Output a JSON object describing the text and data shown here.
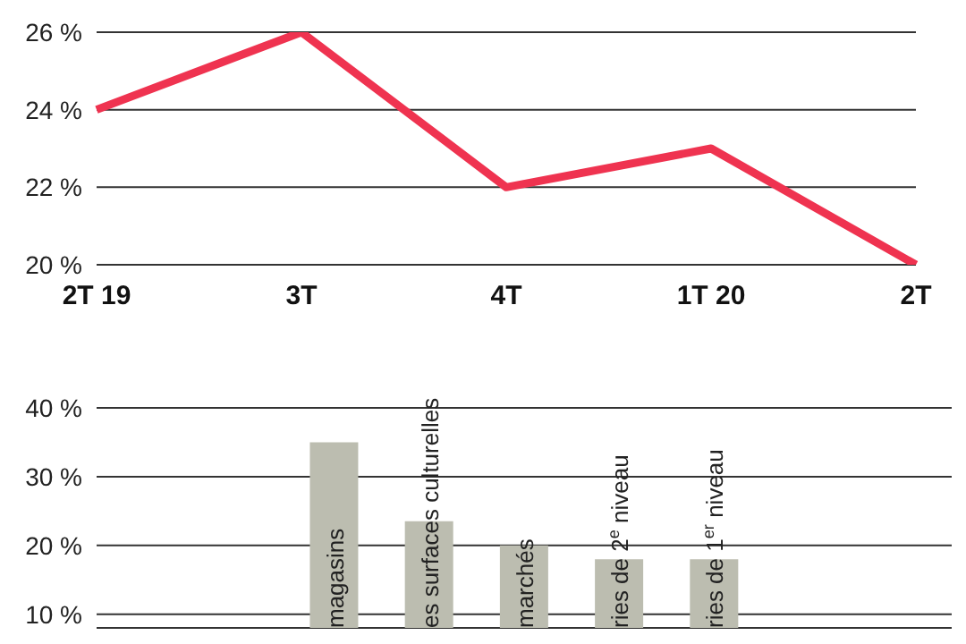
{
  "chart_data": [
    {
      "type": "line",
      "categories": [
        "2T 19",
        "3T",
        "4T",
        "1T 20",
        "2T"
      ],
      "series": [
        {
          "color": "#ef3350",
          "values": [
            24,
            26,
            22,
            23,
            20
          ]
        }
      ],
      "ylim": [
        20,
        26
      ],
      "yticks": [
        {
          "value": 20,
          "label": "20 %"
        },
        {
          "value": 22,
          "label": "22 %"
        },
        {
          "value": 24,
          "label": "24 %"
        },
        {
          "value": 26,
          "label": "26 %"
        }
      ],
      "grid": "y"
    },
    {
      "type": "bar",
      "categories": [
        null,
        null,
        "magasins",
        "es surfaces culturelles",
        "marchés",
        "ries de 2$^{e}$ niveau",
        "ries de 1$^{er}$ niveau",
        null,
        null
      ],
      "series": [
        {
          "color": "#bcbdb0",
          "values": [
            null,
            null,
            35,
            23.5,
            20,
            18,
            18,
            null,
            null
          ]
        }
      ],
      "ylim": [
        8,
        40
      ],
      "yticks": [
        {
          "value": 10,
          "label": "10 %"
        },
        {
          "value": 20,
          "label": "20 %"
        },
        {
          "value": 30,
          "label": "30 %"
        },
        {
          "value": 40,
          "label": "40 %"
        }
      ],
      "grid": "y"
    }
  ]
}
